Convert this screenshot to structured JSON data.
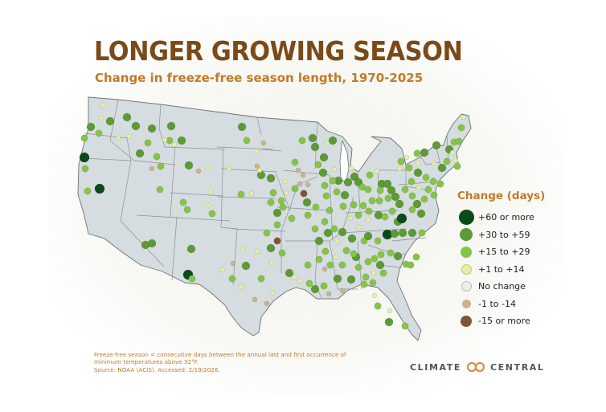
{
  "title": "LONGER GROWING SEASON",
  "subtitle": "Change in freeze-free season length, 1970-2025",
  "legend": {
    "title": "Change (days)",
    "items": [
      {
        "key": "g60",
        "label": "+60 or more",
        "color": "#0b4a1a"
      },
      {
        "key": "g30",
        "label": "+30 to +59",
        "color": "#5e9a34"
      },
      {
        "key": "g15",
        "label": "+15 to +29",
        "color": "#86c447"
      },
      {
        "key": "g1",
        "label": "+1 to +14",
        "color": "#e3f0a5"
      },
      {
        "key": "n0",
        "label": "No change",
        "color": "#eeeeee"
      },
      {
        "key": "d1",
        "label": "-1 to -14",
        "color": "#cbb48a"
      },
      {
        "key": "d15",
        "label": "-15 or more",
        "color": "#7f5533"
      }
    ]
  },
  "note": {
    "line1": "Freeze-free season = consecutive days between the annual last and first occurrence of",
    "line2": "minimum temperatures above 32°F.",
    "line3": "Source: NOAA (ACIS). Accessed: 2/19/2026."
  },
  "brand": {
    "left": "CLIMATE",
    "right": "CENTRAL"
  }
}
